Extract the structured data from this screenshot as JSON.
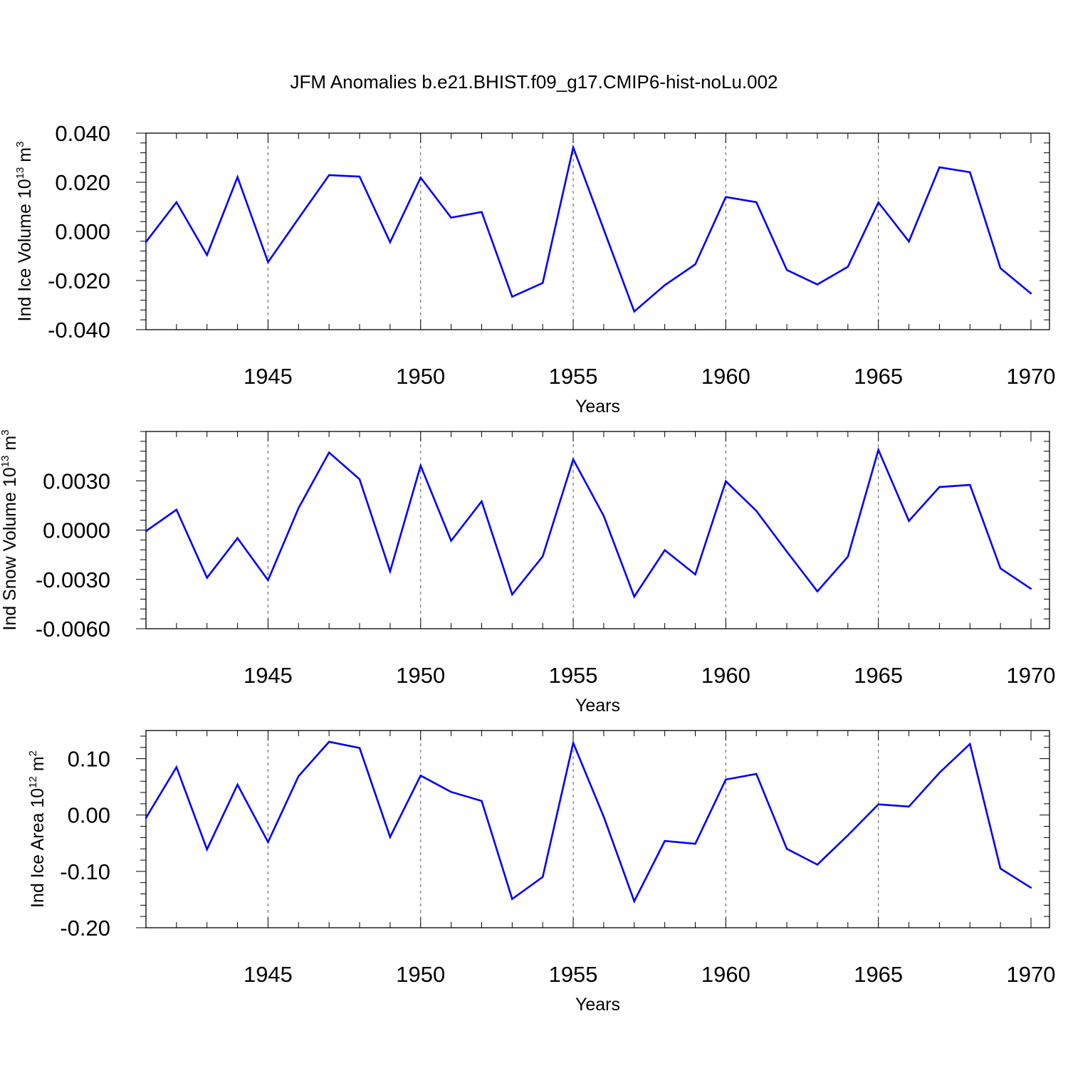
{
  "title": "JFM Anomalies b.e21.BHIST.f09_g17.CMIP6-hist-noLu.002",
  "colors": {
    "line": "#0000ff",
    "axis": "#000000",
    "grid": "#555555",
    "background": "#ffffff"
  },
  "chart_data": [
    {
      "type": "line",
      "xlabel": "Years",
      "ylabel_parts": {
        "base": "Ind Ice Volume 10",
        "exp": "13",
        "unit": " m",
        "unit_exp": "3"
      },
      "xlim": [
        1941,
        1970
      ],
      "ylim": [
        -0.04,
        0.04
      ],
      "x_ticks": [
        "1945",
        "1950",
        "1955",
        "1960",
        "1965",
        "1970"
      ],
      "y_ticks": [
        "-0.040",
        "-0.020",
        "0.000",
        "0.020",
        "0.040"
      ],
      "grid": "vertical dashed at 1945, 1950, 1955, 1960, 1965",
      "x": [
        1941,
        1942,
        1943,
        1944,
        1945,
        1946,
        1947,
        1948,
        1949,
        1950,
        1951,
        1952,
        1953,
        1954,
        1955,
        1956,
        1957,
        1958,
        1959,
        1960,
        1961,
        1962,
        1963,
        1964,
        1965,
        1966,
        1967,
        1968,
        1969,
        1970
      ],
      "values": [
        -0.0043,
        0.0119,
        -0.0096,
        0.0221,
        -0.0125,
        0.0053,
        0.0229,
        0.0223,
        -0.0044,
        0.0219,
        0.0056,
        0.0079,
        -0.0266,
        -0.021,
        0.0342,
        0.0008,
        -0.0326,
        -0.0219,
        -0.0134,
        0.014,
        0.0119,
        -0.0157,
        -0.0216,
        -0.0144,
        0.0118,
        -0.0041,
        0.0261,
        0.0241,
        -0.015,
        -0.0253
      ]
    },
    {
      "type": "line",
      "xlabel": "Years",
      "ylabel_parts": {
        "base": "Ind Snow Volume 10",
        "exp": "13",
        "unit": " m",
        "unit_exp": "3"
      },
      "xlim": [
        1941,
        1970
      ],
      "ylim": [
        -0.006,
        0.006
      ],
      "x_ticks": [
        "1945",
        "1950",
        "1955",
        "1960",
        "1965",
        "1970"
      ],
      "y_ticks": [
        "-0.0060",
        "-0.0030",
        "0.0000",
        "0.0030"
      ],
      "y_tick_values": [
        -0.006,
        -0.003,
        0.0,
        0.003
      ],
      "grid": "vertical dashed at 1945, 1950, 1955, 1960, 1965",
      "x": [
        1941,
        1942,
        1943,
        1944,
        1945,
        1946,
        1947,
        1948,
        1949,
        1950,
        1951,
        1952,
        1953,
        1954,
        1955,
        1956,
        1957,
        1958,
        1959,
        1960,
        1961,
        1962,
        1963,
        1964,
        1965,
        1966,
        1967,
        1968,
        1969,
        1970
      ],
      "values": [
        -6e-05,
        0.00124,
        -0.0029,
        -0.00049,
        -0.00305,
        0.00134,
        0.00472,
        0.00309,
        -0.00251,
        0.00392,
        -0.00065,
        0.00175,
        -0.00392,
        -0.0016,
        0.0043,
        0.00086,
        -0.00405,
        -0.00122,
        -0.0027,
        0.00297,
        0.00117,
        -0.00131,
        -0.00373,
        -0.00162,
        0.00488,
        0.00056,
        0.00262,
        0.00275,
        -0.00233,
        -0.00357
      ]
    },
    {
      "type": "line",
      "xlabel": "Years",
      "ylabel_parts": {
        "base": "Ind Ice Area 10",
        "exp": "12",
        "unit": " m",
        "unit_exp": "2"
      },
      "xlim": [
        1941,
        1970
      ],
      "ylim": [
        -0.2,
        0.15
      ],
      "x_ticks": [
        "1945",
        "1950",
        "1955",
        "1960",
        "1965",
        "1970"
      ],
      "y_ticks": [
        "-0.20",
        "-0.10",
        "0.00",
        "0.10"
      ],
      "y_tick_values": [
        -0.2,
        -0.1,
        0.0,
        0.1
      ],
      "grid": "vertical dashed at 1945, 1950, 1955, 1960, 1965",
      "x": [
        1941,
        1942,
        1943,
        1944,
        1945,
        1946,
        1947,
        1948,
        1949,
        1950,
        1951,
        1952,
        1953,
        1954,
        1955,
        1956,
        1957,
        1958,
        1959,
        1960,
        1961,
        1962,
        1963,
        1964,
        1965,
        1966,
        1967,
        1968,
        1969,
        1970
      ],
      "values": [
        -0.005,
        0.085,
        -0.061,
        0.054,
        -0.048,
        0.069,
        0.13,
        0.119,
        -0.039,
        0.07,
        0.041,
        0.025,
        -0.149,
        -0.11,
        0.128,
        -0.003,
        -0.153,
        -0.046,
        -0.051,
        0.063,
        0.073,
        -0.06,
        -0.088,
        -0.036,
        0.019,
        0.015,
        0.075,
        0.126,
        -0.095,
        -0.129
      ]
    }
  ]
}
